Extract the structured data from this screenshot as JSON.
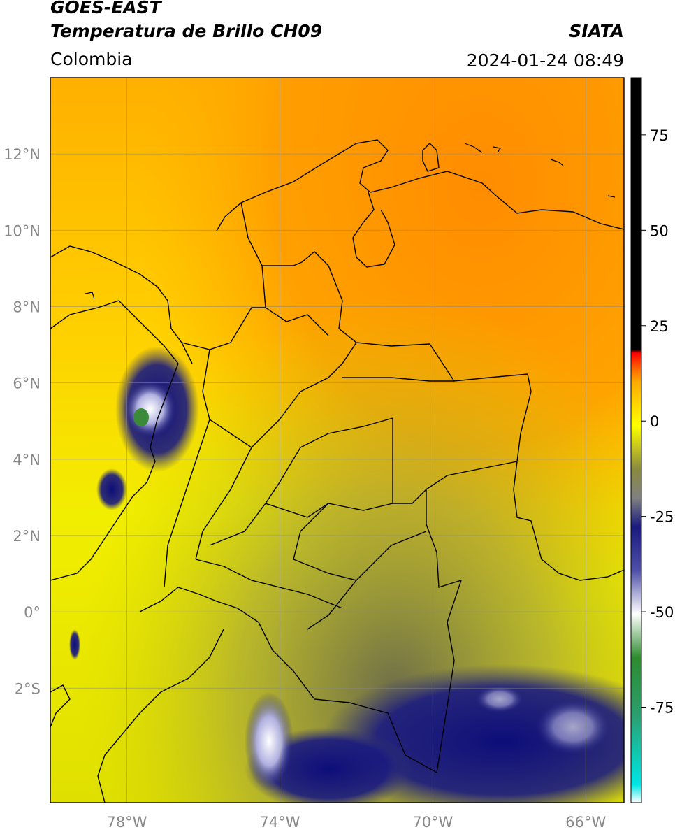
{
  "header": {
    "satellite": "GOES-EAST",
    "product": "Temperatura de Brillo CH09",
    "region": "Colombia",
    "agency": "SIATA",
    "datetime": "2024-01-24 08:49"
  },
  "map": {
    "lon_range": [
      -80,
      -65
    ],
    "lat_range": [
      -5,
      14
    ],
    "lat_ticks": [
      "12°N",
      "10°N",
      "8°N",
      "6°N",
      "4°N",
      "2°N",
      "0°",
      "2°S"
    ],
    "lon_ticks": [
      "78°W",
      "74°W",
      "70°W",
      "66°W"
    ],
    "gridlines": true,
    "colors": {
      "warm_fill": "#ff8c00",
      "mid_fill": "#ffe600",
      "cool_fill": "#9c9c40",
      "cold_fill": "#1a1a80",
      "border_lines": "#000000",
      "grid_lines": "#888888"
    }
  },
  "colorbar": {
    "ticks": [
      "75",
      "50",
      "25",
      "0",
      "-25",
      "-50",
      "-75"
    ],
    "colors": [
      "#000000",
      "#ff0000",
      "#ff8c00",
      "#ffff00",
      "#808040",
      "#1a1a80",
      "#ffffff",
      "#2e8b2e",
      "#00e5e5"
    ]
  }
}
